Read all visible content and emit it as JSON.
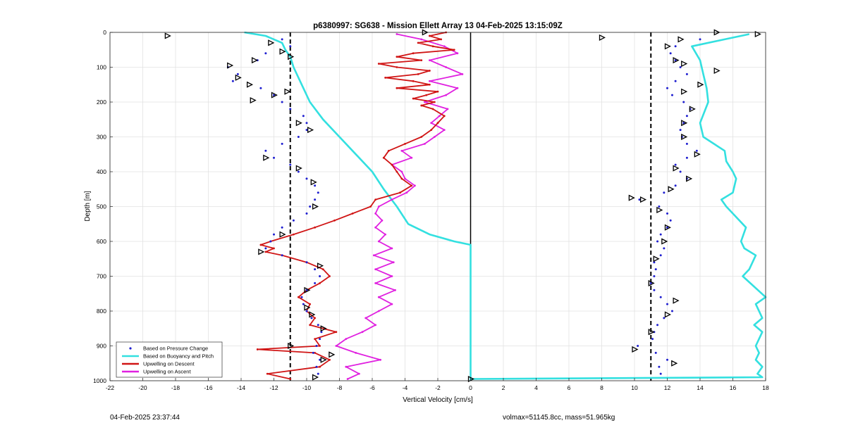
{
  "footer": {
    "timestamp": "04-Feb-2025 23:37:44",
    "stats": "volmax=51145.8cc, mass=51.965kg"
  },
  "chart_data": {
    "type": "line",
    "title": "p6380997: SG638 - Mission Ellett Array 13 04-Feb-2025 13:15:09Z",
    "xlabel": "Vertical Velocity [cm/s]",
    "ylabel": "Depth [m]",
    "xlim": [
      -22,
      18
    ],
    "ylim": [
      0,
      1000
    ],
    "y_reversed": true,
    "xticks": [
      -22,
      -20,
      -18,
      -16,
      -14,
      -12,
      -10,
      -8,
      -6,
      -4,
      -2,
      0,
      2,
      4,
      6,
      8,
      10,
      12,
      14,
      16,
      18
    ],
    "yticks": [
      0,
      100,
      200,
      300,
      400,
      500,
      600,
      700,
      800,
      900,
      1000
    ],
    "grid": true,
    "legend_position": "bottom-left",
    "reference_lines": {
      "zero": 0,
      "dashed": [
        -11,
        11
      ]
    },
    "colors": {
      "pressure": "#1f1fd0",
      "buoyancy": "#33e0e0",
      "descent": "#d01414",
      "ascent": "#e020e0",
      "marker": "#000000"
    },
    "series": [
      {
        "name": "Based on Pressure Change",
        "style": "points",
        "color": "#1f1fd0",
        "descent": {
          "depth": [
            20,
            40,
            60,
            80,
            100,
            120,
            140,
            160,
            180,
            200,
            220,
            240,
            260,
            280,
            300,
            320,
            340,
            360,
            380,
            400,
            420,
            440,
            460,
            480,
            500,
            520,
            540,
            560,
            580,
            600,
            620,
            640,
            660,
            680,
            700,
            720,
            740,
            760,
            780,
            800,
            820,
            840,
            860,
            880,
            900,
            920,
            940,
            960,
            980
          ],
          "velocity": [
            -11.5,
            -11,
            -12.5,
            -13,
            -14.8,
            -14.2,
            -14.5,
            -12.8,
            -12,
            -11.5,
            -11,
            -10.2,
            -10,
            -10,
            -10.5,
            -11.5,
            -12.5,
            -12,
            -11,
            -10.5,
            -10,
            -9.5,
            -9.3,
            -9.5,
            -9.8,
            -10,
            -10.8,
            -11.5,
            -12,
            -12.2,
            -12.5,
            -11.5,
            -10,
            -9.5,
            -9.2,
            -9.5,
            -10,
            -10.3,
            -10.2,
            -10,
            -9.7,
            -9.3,
            -9.1,
            -9.2,
            -9.4,
            -9.6,
            -9.2,
            -9.4,
            -9.3
          ]
        },
        "ascent": {
          "depth": [
            20,
            40,
            60,
            80,
            100,
            120,
            140,
            160,
            180,
            200,
            220,
            240,
            260,
            280,
            300,
            320,
            340,
            360,
            380,
            400,
            420,
            440,
            460,
            480,
            500,
            520,
            540,
            560,
            580,
            600,
            620,
            640,
            660,
            680,
            700,
            720,
            740,
            760,
            780,
            800,
            820,
            840,
            860,
            880,
            900,
            920,
            940,
            960,
            980
          ],
          "velocity": [
            14,
            12.5,
            12.2,
            12.5,
            12.8,
            13.2,
            12.5,
            12,
            12.3,
            13,
            13.4,
            13.2,
            13,
            12.8,
            12.9,
            13.2,
            13.8,
            13.2,
            12.5,
            12.8,
            13.2,
            12.5,
            11.8,
            10.3,
            11.5,
            12,
            12.2,
            12,
            11.6,
            11.4,
            11.8,
            11.6,
            11.2,
            11.3,
            11.2,
            11,
            11.2,
            11.6,
            12,
            12.3,
            11.8,
            11.4,
            11.2,
            11.1,
            10.2,
            11.3,
            12,
            11.5,
            11.6
          ]
        }
      },
      {
        "name": "Based on Buoyancy and Pitch",
        "style": "line",
        "color": "#33e0e0",
        "descent": {
          "depth": [
            0,
            10,
            30,
            50,
            70,
            100,
            150,
            200,
            250,
            300,
            350,
            400,
            450,
            500,
            550,
            580,
            600,
            610,
            620,
            700,
            800,
            900,
            980,
            995,
            1000
          ],
          "velocity": [
            -13.8,
            -12.5,
            -11.5,
            -11.3,
            -11,
            -10.8,
            -10.3,
            -9.8,
            -9,
            -8,
            -7,
            -6,
            -5.3,
            -4.5,
            -3.8,
            -2.5,
            -1,
            0,
            0,
            0,
            0,
            0,
            0,
            0,
            0
          ]
        },
        "ascent": {
          "depth": [
            995,
            990,
            980,
            960,
            940,
            920,
            900,
            860,
            840,
            820,
            780,
            760,
            700,
            680,
            640,
            620,
            600,
            560,
            520,
            500,
            480,
            460,
            420,
            400,
            370,
            340,
            300,
            260,
            200,
            160,
            120,
            80,
            40,
            20,
            5
          ],
          "velocity": [
            0,
            17.8,
            17.5,
            17.8,
            17.4,
            17.6,
            17.4,
            17.8,
            17.3,
            17.8,
            17.4,
            18,
            16.6,
            17,
            17.4,
            16.7,
            16.5,
            16.8,
            16,
            15.6,
            15.3,
            16,
            16.2,
            16,
            15.6,
            15.5,
            14.2,
            14,
            14.5,
            14.4,
            14.2,
            14,
            13.5,
            15.5,
            17
          ]
        }
      },
      {
        "name": "Upwelling on Descent",
        "style": "line+points",
        "color": "#d01414",
        "depth": [
          0,
          10,
          20,
          30,
          40,
          50,
          60,
          70,
          80,
          90,
          100,
          110,
          120,
          130,
          140,
          150,
          160,
          170,
          180,
          190,
          200,
          210,
          220,
          240,
          260,
          280,
          300,
          320,
          340,
          360,
          380,
          400,
          420,
          440,
          460,
          480,
          500,
          520,
          540,
          560,
          580,
          600,
          610,
          620,
          630,
          640,
          660,
          680,
          700,
          720,
          740,
          760,
          780,
          800,
          820,
          840,
          860,
          880,
          900,
          910,
          920,
          940,
          960,
          980,
          995
        ],
        "velocity": [
          -1.5,
          -2.5,
          -1.8,
          -3.2,
          -2.3,
          -1,
          -3.5,
          -4.5,
          -3,
          -5.6,
          -4.5,
          -2.5,
          -3.2,
          -5.2,
          -3.5,
          -2.5,
          -4.5,
          -2,
          -2.7,
          -3.5,
          -2.2,
          -3,
          -2.3,
          -1.6,
          -2,
          -2.4,
          -3,
          -4,
          -5,
          -5.3,
          -4.8,
          -4.5,
          -4.2,
          -3.6,
          -4.3,
          -5.8,
          -6.1,
          -7.2,
          -8.3,
          -9.5,
          -10.8,
          -12.2,
          -12.8,
          -12,
          -12.5,
          -11.5,
          -10,
          -9,
          -8.6,
          -9.2,
          -10,
          -10.5,
          -9.8,
          -10,
          -9.5,
          -9.8,
          -8.2,
          -9.5,
          -9.2,
          -13,
          -9.5,
          -8.6,
          -9.2,
          -12.4,
          -11
        ]
      },
      {
        "name": "Upwelling on Ascent",
        "style": "line+points",
        "color": "#e020e0",
        "depth": [
          995,
          980,
          960,
          940,
          920,
          900,
          880,
          860,
          840,
          820,
          800,
          780,
          760,
          740,
          720,
          700,
          680,
          660,
          640,
          620,
          600,
          580,
          560,
          540,
          520,
          500,
          480,
          460,
          440,
          420,
          400,
          380,
          360,
          340,
          320,
          300,
          280,
          260,
          240,
          220,
          200,
          180,
          160,
          140,
          120,
          100,
          80,
          60,
          40,
          20,
          5
        ],
        "velocity": [
          -7.5,
          -6.8,
          -7.6,
          -5.5,
          -7,
          -8.2,
          -7.6,
          -6.6,
          -5.8,
          -6.4,
          -5.6,
          -4.8,
          -5.6,
          -4.6,
          -5.8,
          -4.8,
          -5.8,
          -4.7,
          -5.9,
          -4.8,
          -5.6,
          -5.2,
          -5.8,
          -5.4,
          -5.8,
          -5.6,
          -4.8,
          -3.9,
          -3.4,
          -4,
          -4.2,
          -4.8,
          -3.6,
          -4.2,
          -2.8,
          -2.2,
          -1.6,
          -2.4,
          -1.9,
          -1.4,
          -2.8,
          -1.5,
          -0.8,
          -2.5,
          -0.5,
          -1.5,
          -2.5,
          -0.8,
          -1.6,
          -3,
          -4.5
        ]
      }
    ],
    "marker_points": {
      "shape": "triangle",
      "points": [
        {
          "v": -18.5,
          "d": 10
        },
        {
          "v": -12.2,
          "d": 30
        },
        {
          "v": -11.5,
          "d": 55
        },
        {
          "v": -11,
          "d": 70
        },
        {
          "v": -14.7,
          "d": 95
        },
        {
          "v": -13.2,
          "d": 80
        },
        {
          "v": -14.2,
          "d": 130
        },
        {
          "v": -13.5,
          "d": 150
        },
        {
          "v": -11.2,
          "d": 170
        },
        {
          "v": -12,
          "d": 180
        },
        {
          "v": -13.3,
          "d": 195
        },
        {
          "v": -10.5,
          "d": 260
        },
        {
          "v": -9.8,
          "d": 280
        },
        {
          "v": -12.5,
          "d": 360
        },
        {
          "v": -10.5,
          "d": 390
        },
        {
          "v": -9.6,
          "d": 430
        },
        {
          "v": -9.5,
          "d": 500
        },
        {
          "v": -11.5,
          "d": 580
        },
        {
          "v": -12.8,
          "d": 630
        },
        {
          "v": -9.2,
          "d": 670
        },
        {
          "v": -10,
          "d": 740
        },
        {
          "v": -10,
          "d": 790
        },
        {
          "v": -9.7,
          "d": 810
        },
        {
          "v": -9,
          "d": 850
        },
        {
          "v": -8.5,
          "d": 925
        },
        {
          "v": -11,
          "d": 900
        },
        {
          "v": -9,
          "d": 940
        },
        {
          "v": -9.5,
          "d": 990
        },
        {
          "v": -2.8,
          "d": 0
        },
        {
          "v": 8,
          "d": 15
        },
        {
          "v": 15,
          "d": 0
        },
        {
          "v": 17.5,
          "d": 5
        },
        {
          "v": 12.8,
          "d": 20
        },
        {
          "v": 12,
          "d": 40
        },
        {
          "v": 12.5,
          "d": 80
        },
        {
          "v": 13,
          "d": 90
        },
        {
          "v": 15,
          "d": 110
        },
        {
          "v": 13,
          "d": 170
        },
        {
          "v": 14,
          "d": 150
        },
        {
          "v": 13.5,
          "d": 220
        },
        {
          "v": 13,
          "d": 260
        },
        {
          "v": 13,
          "d": 300
        },
        {
          "v": 13.8,
          "d": 350
        },
        {
          "v": 12.5,
          "d": 390
        },
        {
          "v": 13.3,
          "d": 420
        },
        {
          "v": 12.2,
          "d": 450
        },
        {
          "v": 9.8,
          "d": 475
        },
        {
          "v": 10.5,
          "d": 480
        },
        {
          "v": 11.5,
          "d": 510
        },
        {
          "v": 12,
          "d": 560
        },
        {
          "v": 11.8,
          "d": 600
        },
        {
          "v": 11.3,
          "d": 650
        },
        {
          "v": 11,
          "d": 720
        },
        {
          "v": 12.5,
          "d": 770
        },
        {
          "v": 12,
          "d": 810
        },
        {
          "v": 11,
          "d": 860
        },
        {
          "v": 10,
          "d": 910
        },
        {
          "v": 12.4,
          "d": 950
        },
        {
          "v": 0,
          "d": 995
        }
      ]
    }
  }
}
